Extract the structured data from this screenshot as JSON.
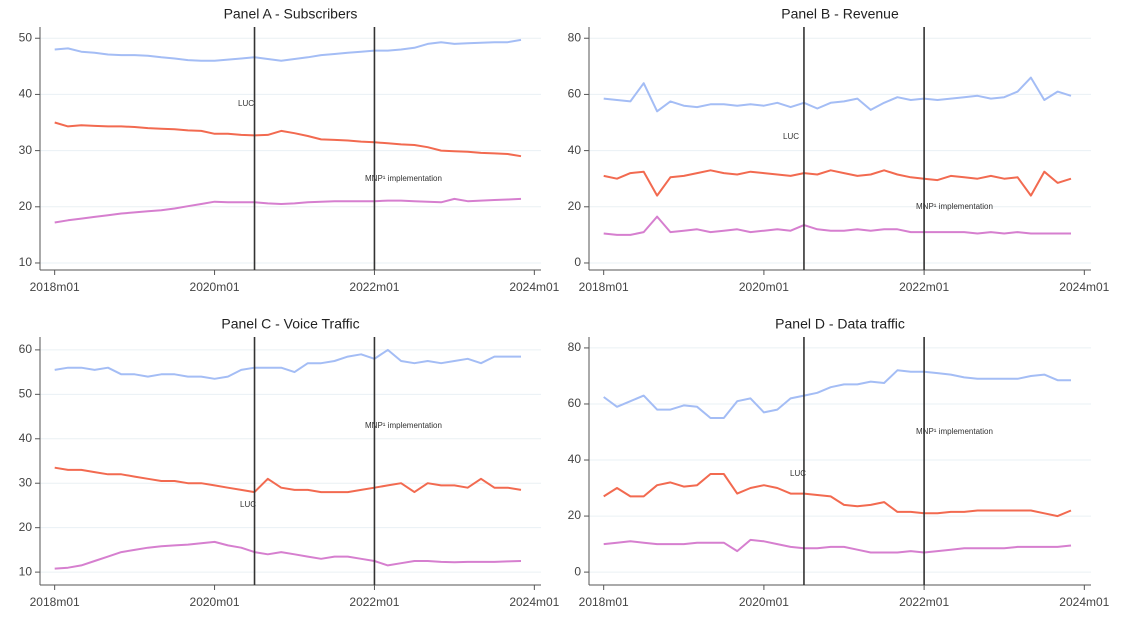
{
  "chart_data": [
    {
      "type": "line",
      "title": "Panel A - Subscribers",
      "x": [
        0,
        2,
        4,
        6,
        8,
        10,
        12,
        14,
        16,
        18,
        20,
        22,
        24,
        26,
        28,
        30,
        32,
        34,
        36,
        38,
        40,
        42,
        44,
        46,
        48,
        50,
        52,
        54,
        56,
        58,
        60,
        62,
        64,
        66,
        68,
        70
      ],
      "xlim": [
        -2.2,
        73
      ],
      "xticks": [
        {
          "value": 0,
          "label": "2018m01"
        },
        {
          "value": 24,
          "label": "2020m01"
        },
        {
          "value": 48,
          "label": "2022m01"
        },
        {
          "value": 72,
          "label": "2024m01"
        }
      ],
      "ylim": [
        8.75,
        52
      ],
      "yticks": [
        10,
        20,
        30,
        40,
        50
      ],
      "grid": true,
      "vlines": [
        {
          "x": 30,
          "label": "LUC"
        },
        {
          "x": 48,
          "label": "MNP¹ implementation"
        }
      ],
      "series": [
        {
          "color": "#a4bdf5",
          "values": [
            48,
            48.2,
            47.6,
            47.4,
            47.1,
            47,
            47,
            46.9,
            46.6,
            46.4,
            46.1,
            46,
            46,
            46.2,
            46.4,
            46.6,
            46.3,
            46,
            46.3,
            46.6,
            47,
            47.2,
            47.4,
            47.6,
            47.8,
            47.8,
            48,
            48.3,
            49,
            49.3,
            49,
            49.1,
            49.2,
            49.3,
            49.3,
            49.7
          ]
        },
        {
          "color": "#f26a50",
          "values": [
            35,
            34.3,
            34.5,
            34.4,
            34.3,
            34.3,
            34.2,
            34,
            33.9,
            33.8,
            33.6,
            33.5,
            33,
            33,
            32.8,
            32.7,
            32.8,
            33.5,
            33.1,
            32.6,
            32,
            31.9,
            31.8,
            31.6,
            31.5,
            31.3,
            31.1,
            31,
            30.6,
            30,
            29.9,
            29.8,
            29.6,
            29.5,
            29.4,
            29
          ]
        },
        {
          "color": "#d67fcf",
          "values": [
            17.2,
            17.6,
            17.9,
            18.2,
            18.5,
            18.8,
            19,
            19.2,
            19.4,
            19.7,
            20.1,
            20.5,
            20.9,
            20.8,
            20.8,
            20.8,
            20.6,
            20.5,
            20.6,
            20.8,
            20.9,
            21,
            21,
            21,
            21,
            21.1,
            21.1,
            21,
            20.9,
            20.8,
            21.4,
            21,
            21.1,
            21.2,
            21.3,
            21.4
          ]
        }
      ]
    },
    {
      "type": "line",
      "title": "Panel B - Revenue",
      "x": [
        0,
        2,
        4,
        6,
        8,
        10,
        12,
        14,
        16,
        18,
        20,
        22,
        24,
        26,
        28,
        30,
        32,
        34,
        36,
        38,
        40,
        42,
        44,
        46,
        48,
        50,
        52,
        54,
        56,
        58,
        60,
        62,
        64,
        66,
        68,
        70
      ],
      "xlim": [
        -2.2,
        73
      ],
      "xticks": [
        {
          "value": 0,
          "label": "2018m01"
        },
        {
          "value": 24,
          "label": "2020m01"
        },
        {
          "value": 48,
          "label": "2022m01"
        },
        {
          "value": 72,
          "label": "2024m01"
        }
      ],
      "ylim": [
        -2.5,
        84
      ],
      "yticks": [
        0,
        20,
        40,
        60,
        80
      ],
      "grid": true,
      "vlines": [
        {
          "x": 30,
          "label": "LUC"
        },
        {
          "x": 48,
          "label": "MNP¹ implementation"
        }
      ],
      "series": [
        {
          "color": "#a4bdf5",
          "values": [
            58.5,
            58,
            57.5,
            64,
            54,
            57.5,
            56,
            55.5,
            56.5,
            56.5,
            56,
            56.5,
            56,
            57,
            55.5,
            57,
            55,
            57,
            57.5,
            58.5,
            54.5,
            57,
            59,
            58,
            58.5,
            58,
            58.5,
            59,
            59.5,
            58.5,
            59,
            61,
            66,
            58,
            61,
            59.5
          ]
        },
        {
          "color": "#f26a50",
          "values": [
            31,
            30,
            32,
            32.5,
            24,
            30.5,
            31,
            32,
            33,
            32,
            31.5,
            32.5,
            32,
            31.5,
            31,
            32,
            31.5,
            33,
            32,
            31,
            31.5,
            33,
            31.5,
            30.5,
            30,
            29.5,
            31,
            30.5,
            30,
            31,
            30,
            30.5,
            24,
            32.5,
            28.5,
            30
          ]
        },
        {
          "color": "#d67fcf",
          "values": [
            10.5,
            10,
            10,
            11,
            16.5,
            11,
            11.5,
            12,
            11,
            11.5,
            12,
            11,
            11.5,
            12,
            11.5,
            13.5,
            12,
            11.5,
            11.5,
            12,
            11.5,
            12,
            12,
            11,
            11,
            11,
            11,
            11,
            10.5,
            11,
            10.5,
            11,
            10.5,
            10.5,
            10.5,
            10.5
          ]
        }
      ]
    },
    {
      "type": "line",
      "title": "Panel C - Voice Traffic",
      "x": [
        0,
        2,
        4,
        6,
        8,
        10,
        12,
        14,
        16,
        18,
        20,
        22,
        24,
        26,
        28,
        30,
        32,
        34,
        36,
        38,
        40,
        42,
        44,
        46,
        48,
        50,
        52,
        54,
        56,
        58,
        60,
        62,
        64,
        66,
        68,
        70
      ],
      "xlim": [
        -2.2,
        73
      ],
      "xticks": [
        {
          "value": 0,
          "label": "2018m01"
        },
        {
          "value": 24,
          "label": "2020m01"
        },
        {
          "value": 48,
          "label": "2022m01"
        },
        {
          "value": 72,
          "label": "2024m01"
        }
      ],
      "ylim": [
        7.1,
        62.9
      ],
      "yticks": [
        10,
        20,
        30,
        40,
        50,
        60
      ],
      "grid": true,
      "vlines": [
        {
          "x": 30,
          "label": "LUC"
        },
        {
          "x": 48,
          "label": "MNP¹ implementation"
        }
      ],
      "series": [
        {
          "color": "#a4bdf5",
          "values": [
            55.5,
            56,
            56,
            55.5,
            56,
            54.5,
            54.5,
            54,
            54.5,
            54.5,
            54,
            54,
            53.5,
            54,
            55.5,
            56,
            56,
            56,
            55,
            57,
            57,
            57.5,
            58.5,
            59,
            58,
            60,
            57.5,
            57,
            57.5,
            57,
            57.5,
            58,
            57,
            58.5,
            58.5,
            58.5
          ]
        },
        {
          "color": "#f26a50",
          "values": [
            33.5,
            33,
            33,
            32.5,
            32,
            32,
            31.5,
            31,
            30.5,
            30.5,
            30,
            30,
            29.5,
            29,
            28.5,
            28,
            31,
            29,
            28.5,
            28.5,
            28,
            28,
            28,
            28.5,
            29,
            29.5,
            30,
            28,
            30,
            29.5,
            29.5,
            29,
            31,
            29,
            29,
            28.5
          ]
        },
        {
          "color": "#d67fcf",
          "values": [
            10.8,
            11,
            11.5,
            12.5,
            13.5,
            14.5,
            15,
            15.5,
            15.8,
            16,
            16.2,
            16.5,
            16.8,
            16,
            15.5,
            14.5,
            14,
            14.5,
            14,
            13.5,
            13,
            13.5,
            13.5,
            13,
            12.5,
            11.5,
            12,
            12.5,
            12.5,
            12.3,
            12.2,
            12.3,
            12.3,
            12.3,
            12.4,
            12.5
          ]
        }
      ]
    },
    {
      "type": "line",
      "title": "Panel D - Data traffic",
      "x": [
        0,
        2,
        4,
        6,
        8,
        10,
        12,
        14,
        16,
        18,
        20,
        22,
        24,
        26,
        28,
        30,
        32,
        34,
        36,
        38,
        40,
        42,
        44,
        46,
        48,
        50,
        52,
        54,
        56,
        58,
        60,
        62,
        64,
        66,
        68,
        70
      ],
      "xlim": [
        -2.2,
        73
      ],
      "xticks": [
        {
          "value": 0,
          "label": "2018m01"
        },
        {
          "value": 24,
          "label": "2020m01"
        },
        {
          "value": 48,
          "label": "2022m01"
        },
        {
          "value": 72,
          "label": "2024m01"
        }
      ],
      "ylim": [
        -4.6,
        83.9
      ],
      "yticks": [
        0,
        20,
        40,
        60,
        80
      ],
      "grid": true,
      "vlines": [
        {
          "x": 30,
          "label": "LUC"
        },
        {
          "x": 48,
          "label": "MNP¹ implementation"
        }
      ],
      "series": [
        {
          "color": "#a4bdf5",
          "values": [
            62.5,
            59,
            61,
            63,
            58,
            58,
            59.5,
            59,
            55,
            55,
            61,
            62,
            57,
            58,
            62,
            63,
            64,
            66,
            67,
            67,
            68,
            67.5,
            72,
            71.5,
            71.5,
            71,
            70.5,
            69.5,
            69,
            69,
            69,
            69,
            70,
            70.5,
            68.5,
            68.5
          ]
        },
        {
          "color": "#f26a50",
          "values": [
            27,
            30,
            27,
            27,
            31,
            32,
            30.5,
            31,
            35,
            35,
            28,
            30,
            31,
            30,
            28,
            28,
            27.5,
            27,
            24,
            23.5,
            24,
            25,
            21.5,
            21.5,
            21,
            21,
            21.5,
            21.5,
            22,
            22,
            22,
            22,
            22,
            21,
            20,
            22
          ]
        },
        {
          "color": "#d67fcf",
          "values": [
            10,
            10.5,
            11,
            10.5,
            10,
            10,
            10,
            10.5,
            10.5,
            10.5,
            7.5,
            11.5,
            11,
            10,
            9,
            8.5,
            8.5,
            9,
            9,
            8,
            7,
            7,
            7,
            7.5,
            7,
            7.5,
            8,
            8.5,
            8.5,
            8.5,
            8.5,
            9,
            9,
            9,
            9,
            9.5
          ]
        }
      ]
    }
  ]
}
